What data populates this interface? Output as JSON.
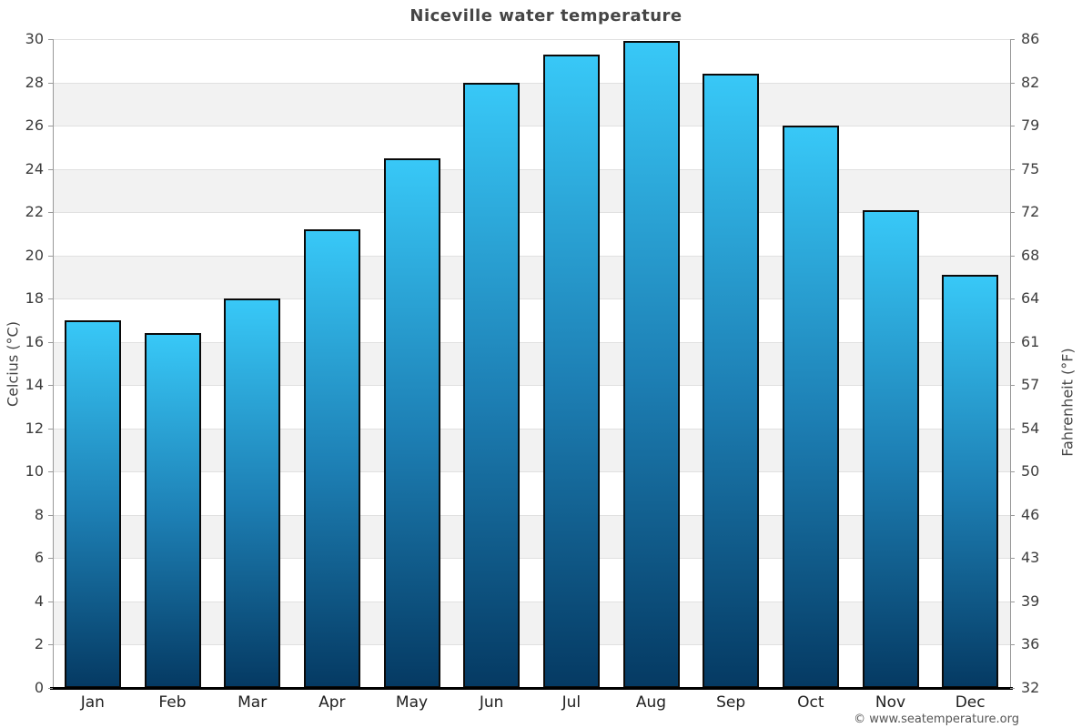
{
  "chart_data": {
    "type": "bar",
    "title": "Niceville water temperature",
    "categories": [
      "Jan",
      "Feb",
      "Mar",
      "Apr",
      "May",
      "Jun",
      "Jul",
      "Aug",
      "Sep",
      "Oct",
      "Nov",
      "Dec"
    ],
    "values": [
      17.0,
      16.4,
      18.0,
      21.2,
      24.5,
      28.0,
      29.3,
      29.9,
      28.4,
      26.0,
      22.1,
      19.1
    ],
    "ylabel_left": "Celcius (°C)",
    "ylabel_right": "Fahrenheit (°F)",
    "y_ticks_left": [
      30,
      28,
      26,
      24,
      22,
      20,
      18,
      16,
      14,
      12,
      10,
      8,
      6,
      4,
      2,
      0
    ],
    "y_ticks_right": [
      86,
      82,
      79,
      75,
      72,
      68,
      64,
      61,
      57,
      54,
      50,
      46,
      43,
      39,
      36,
      32
    ],
    "ylim": [
      0,
      30
    ],
    "xlabel": "",
    "grid": "horizontal gridlines with alternating shaded bands",
    "legend": "none",
    "colors": {
      "bar_top": "#38c8f7",
      "bar_mid": "#1d7fb4",
      "bar_bottom": "#053a63",
      "bar_border": "#0a0a0a",
      "band": "#f2f2f2",
      "gridline": "#e0e0e0",
      "axis_line": "#999999",
      "baseline": "#000000",
      "title": "#454545",
      "tick_label": "#3d3d3d",
      "month_label": "#1f1f1f",
      "copyright": "#555555"
    }
  },
  "footer": {
    "copyright": "© www.seatemperature.org"
  }
}
